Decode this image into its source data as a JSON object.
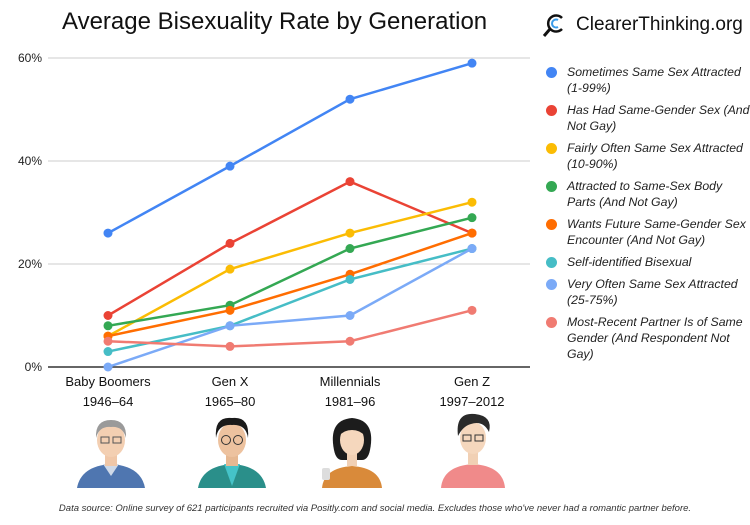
{
  "brand": {
    "name": "ClearerThinking.org",
    "icon": "magnifier-c-logo"
  },
  "footer": "Data source: Online survey of 621 participants recruited via Positly.com and social media. Excludes those who've never had a romantic partner before.",
  "chart_data": {
    "type": "line",
    "title": "Average Bisexuality Rate by Generation",
    "categories": [
      "Baby Boomers",
      "Gen X",
      "Millennials",
      "Gen Z"
    ],
    "category_sublabels": [
      "1946–64",
      "1965–80",
      "1981–96",
      "1997–2012"
    ],
    "ylim": [
      0,
      60
    ],
    "yticks": [
      "0%",
      "20%",
      "40%",
      "60%"
    ],
    "grid": true,
    "legend": "right",
    "series": [
      {
        "name": "Sometimes Same Sex Attracted (1-99%)",
        "color": "#4285f4",
        "values": [
          26,
          39,
          52,
          59
        ]
      },
      {
        "name": "Has Had Same-Gender Sex (And Not Gay)",
        "color": "#ea4335",
        "values": [
          10,
          24,
          36,
          26
        ]
      },
      {
        "name": "Fairly Often Same Sex Attracted (10-90%)",
        "color": "#fbbc04",
        "values": [
          6,
          19,
          26,
          32
        ]
      },
      {
        "name": "Attracted to Same-Sex Body Parts (And Not Gay)",
        "color": "#34a853",
        "values": [
          8,
          12,
          23,
          29
        ]
      },
      {
        "name": "Wants Future Same-Gender Sex Encounter (And Not Gay)",
        "color": "#ff6d01",
        "values": [
          6,
          11,
          18,
          26
        ]
      },
      {
        "name": "Self-identified Bisexual",
        "color": "#46bdc6",
        "values": [
          3,
          8,
          17,
          23
        ]
      },
      {
        "name": "Very Often Same Sex Attracted (25-75%)",
        "color": "#7baaf7",
        "values": [
          0,
          8,
          10,
          23
        ]
      },
      {
        "name": "Most-Recent Partner Is of Same Gender (And Respondent Not Gay)",
        "color": "#f07b72",
        "values": [
          5,
          4,
          5,
          11
        ]
      }
    ]
  }
}
